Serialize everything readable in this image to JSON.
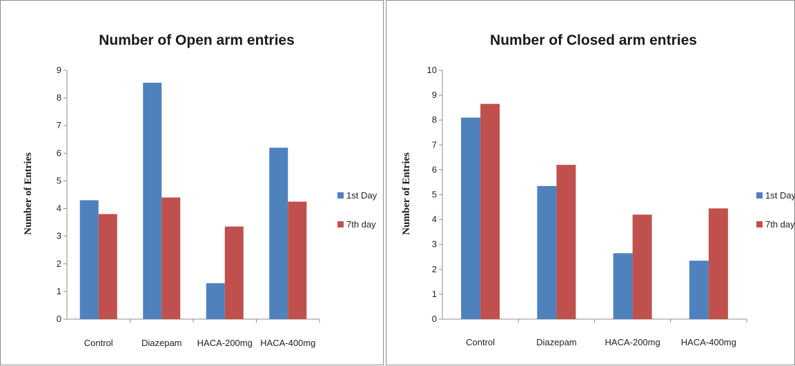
{
  "chart_data": [
    {
      "type": "bar",
      "title": "Number of Open arm entries",
      "ylabel": "Number of Entries",
      "xlabel": "",
      "categories": [
        "Control",
        "Diazepam",
        "HACA-200mg",
        "HACA-400mg"
      ],
      "ylim": [
        0,
        9
      ],
      "yticks": [
        0,
        1,
        2,
        3,
        4,
        5,
        6,
        7,
        8,
        9
      ],
      "grid": false,
      "legend_position": "right",
      "series": [
        {
          "name": "1st Day",
          "color": "#4f81bd",
          "values": [
            4.3,
            8.55,
            1.3,
            6.2
          ]
        },
        {
          "name": "7th day",
          "color": "#c0504d",
          "values": [
            3.8,
            4.4,
            3.35,
            4.25
          ]
        }
      ]
    },
    {
      "type": "bar",
      "title": "Number of Closed arm entries",
      "ylabel": "Number of Entries",
      "xlabel": "",
      "categories": [
        "Control",
        "Diazepam",
        "HACA-200mg",
        "HACA-400mg"
      ],
      "ylim": [
        0,
        10
      ],
      "yticks": [
        0,
        1,
        2,
        3,
        4,
        5,
        6,
        7,
        8,
        9,
        10
      ],
      "grid": false,
      "legend_position": "right",
      "series": [
        {
          "name": "1st Day",
          "color": "#4f81bd",
          "values": [
            8.1,
            5.35,
            2.65,
            2.35
          ]
        },
        {
          "name": "7th day",
          "color": "#c0504d",
          "values": [
            8.65,
            6.2,
            4.2,
            4.45
          ]
        }
      ]
    }
  ]
}
